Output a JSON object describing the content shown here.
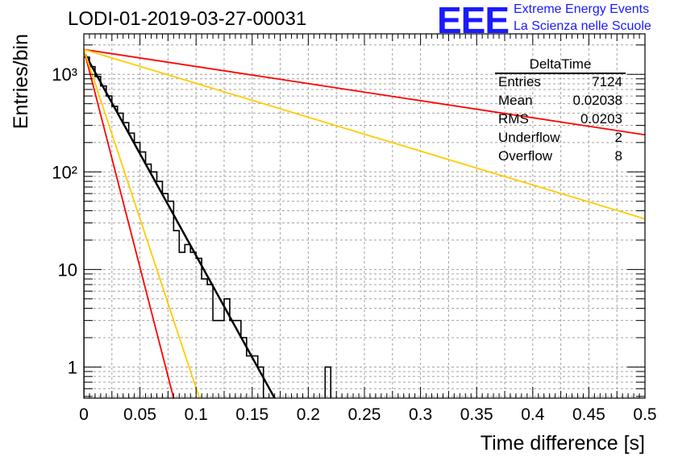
{
  "header": {
    "title": "LODI-01-2019-03-27-00031",
    "logo_mark": "EEE",
    "logo_line1": "Extreme Energy Events",
    "logo_line2": "La Scienza nelle Scuole"
  },
  "stats_box": {
    "title": "DeltaTime",
    "rows": [
      {
        "label": "Entries",
        "value": "7124"
      },
      {
        "label": "Mean",
        "value": "0.02038"
      },
      {
        "label": "RMS",
        "value": "0.0203"
      },
      {
        "label": "Underflow",
        "value": "2"
      },
      {
        "label": "Overflow",
        "value": "8"
      }
    ]
  },
  "chart_data": {
    "type": "histogram",
    "xlabel": "Time difference [s]",
    "ylabel": "Entries/bin",
    "xlim": [
      0,
      0.5
    ],
    "ylim": [
      0.48,
      2600
    ],
    "yscale": "log",
    "grid": true,
    "bin_width": 0.005,
    "x_ticks": [
      "0",
      "0.05",
      "0.1",
      "0.15",
      "0.2",
      "0.25",
      "0.3",
      "0.35",
      "0.4",
      "0.45",
      "0.5"
    ],
    "y_tick_values": [
      1,
      10,
      100,
      1000
    ],
    "y_tick_labels": [
      "1",
      "10",
      "10²",
      "10³"
    ],
    "histogram": {
      "bin_lo": [
        0,
        0.005,
        0.01,
        0.015,
        0.02,
        0.025,
        0.03,
        0.035,
        0.04,
        0.045,
        0.05,
        0.055,
        0.06,
        0.065,
        0.07,
        0.075,
        0.08,
        0.085,
        0.09,
        0.095,
        0.1,
        0.105,
        0.11,
        0.115,
        0.12,
        0.125,
        0.13,
        0.135,
        0.14,
        0.145,
        0.15,
        0.155,
        0.16,
        0.165,
        0.215
      ],
      "counts": [
        1500,
        1200,
        950,
        760,
        600,
        470,
        400,
        320,
        250,
        200,
        160,
        120,
        100,
        80,
        60,
        50,
        25,
        15,
        18,
        15,
        13,
        8,
        7,
        3,
        3,
        5,
        3,
        3,
        2,
        1.3,
        1.3,
        1,
        0.45,
        0.45,
        1
      ]
    },
    "fits": [
      {
        "color": "#000000",
        "x0": 0,
        "y0": 1700,
        "x1": 0.17,
        "y1": 0.48
      },
      {
        "color": "#ff0000",
        "x0": 0,
        "y0": 1800,
        "x1": 0.5,
        "y1": 240
      },
      {
        "color": "#ff0000",
        "x0": 0,
        "y0": 1800,
        "x1": 0.08,
        "y1": 0.48
      },
      {
        "color": "#ffcc00",
        "x0": 0,
        "y0": 1800,
        "x1": 0.5,
        "y1": 33
      },
      {
        "color": "#ffcc00",
        "x0": 0,
        "y0": 1800,
        "x1": 0.103,
        "y1": 0.48
      }
    ]
  }
}
